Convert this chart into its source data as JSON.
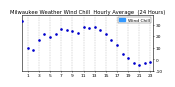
{
  "title": "Milwaukee Weather Wind Chill  Hourly Average  (24 Hours)",
  "x_hours": [
    0,
    1,
    2,
    3,
    4,
    5,
    6,
    7,
    8,
    9,
    10,
    11,
    12,
    13,
    14,
    15,
    16,
    17,
    18,
    19,
    20,
    21,
    22,
    23
  ],
  "y_values": [
    33,
    10,
    8,
    17,
    22,
    19,
    22,
    26,
    25,
    24,
    23,
    28,
    27,
    28,
    25,
    22,
    17,
    12,
    5,
    1,
    -3,
    -5,
    -3,
    -2
  ],
  "dot_color": "#0000cc",
  "legend_bg": "#3399ff",
  "bg_color": "#ffffff",
  "grid_color": "#999999",
  "ylim_min": -8,
  "ylim_max": 38,
  "ytick_values": [
    30,
    20,
    10,
    0,
    -10
  ],
  "ytick_labels": [
    "30",
    "20",
    "10",
    "0",
    "-10"
  ],
  "xtick_values": [
    1,
    3,
    5,
    7,
    9,
    11,
    13,
    15,
    17,
    19,
    21,
    23
  ],
  "xtick_labels": [
    "1",
    "3",
    "5",
    "7",
    "9",
    "11",
    "13",
    "15",
    "17",
    "19",
    "21",
    "23"
  ],
  "title_fontsize": 3.8,
  "tick_fontsize": 3.2,
  "legend_label": "Wind Chill",
  "legend_fontsize": 3.2
}
